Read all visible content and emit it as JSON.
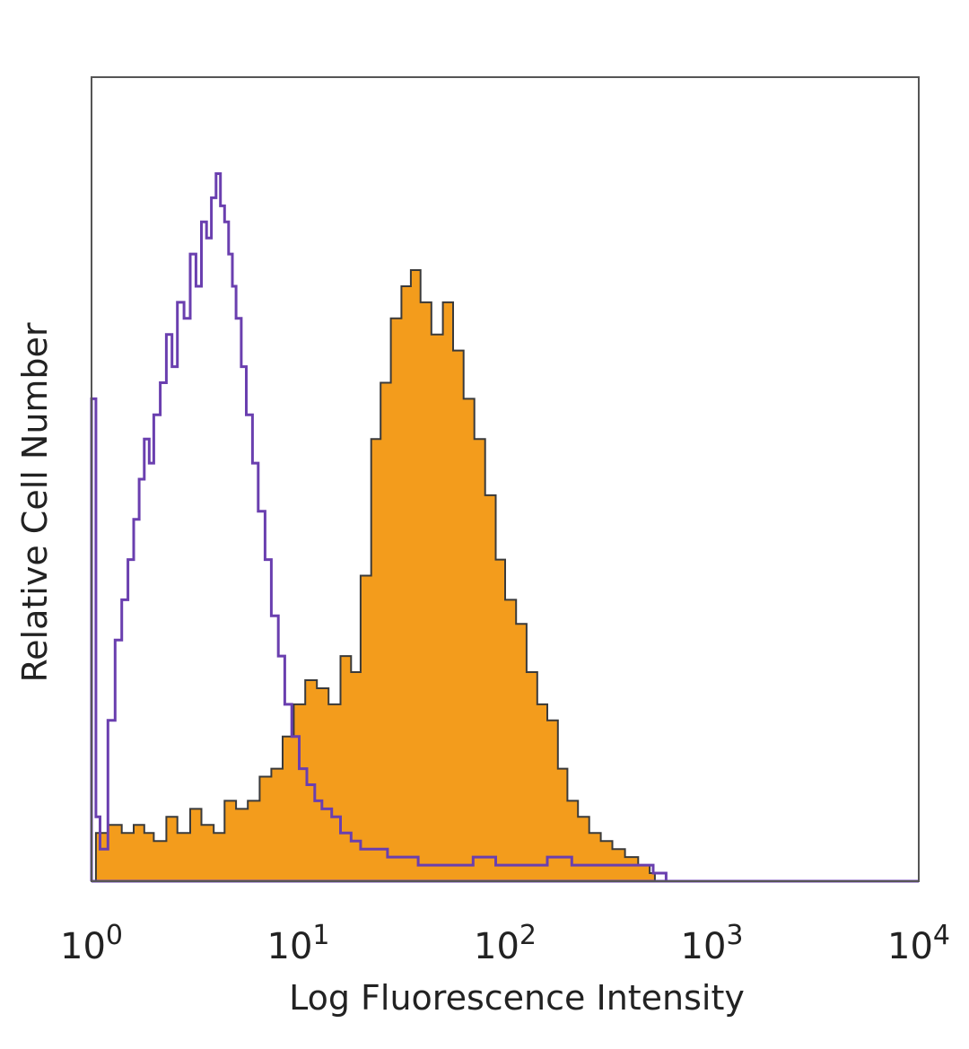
{
  "chart_data": {
    "type": "area",
    "xlabel": "Log Fluorescence Intensity",
    "ylabel": "Relative Cell Number",
    "x_scale": "log",
    "xlim": [
      1,
      10000
    ],
    "ylim": [
      0,
      100
    ],
    "x_ticks": [
      {
        "value": 1,
        "base": "10",
        "exp": "0"
      },
      {
        "value": 10,
        "base": "10",
        "exp": "1"
      },
      {
        "value": 100,
        "base": "10",
        "exp": "2"
      },
      {
        "value": 1000,
        "base": "10",
        "exp": "3"
      },
      {
        "value": 10000,
        "base": "10",
        "exp": "4"
      }
    ],
    "grid": false,
    "series": [
      {
        "style": "filled",
        "color": "#F39C1C",
        "edge_color": "#3a3a3a",
        "x": [
          1.05,
          1.2,
          1.4,
          1.6,
          1.8,
          2.0,
          2.3,
          2.6,
          3.0,
          3.4,
          3.9,
          4.4,
          5.0,
          5.7,
          6.5,
          7.4,
          8.4,
          9.5,
          10.8,
          12.3,
          14,
          16,
          18,
          20,
          22.5,
          25,
          28,
          31.5,
          35,
          39,
          44,
          50,
          56,
          63,
          71,
          80,
          90,
          100,
          113,
          127,
          143,
          160,
          180,
          200,
          225,
          255,
          290,
          330,
          380,
          440,
          500,
          530
        ],
        "y": [
          6,
          7,
          6,
          7,
          6,
          5,
          8,
          6,
          9,
          7,
          6,
          10,
          9,
          10,
          13,
          14,
          18,
          22,
          25,
          24,
          22,
          28,
          26,
          38,
          55,
          62,
          70,
          74,
          76,
          72,
          68,
          72,
          66,
          60,
          55,
          48,
          40,
          35,
          32,
          26,
          22,
          20,
          14,
          10,
          8,
          6,
          5,
          4,
          3,
          2,
          1,
          0
        ]
      },
      {
        "style": "line",
        "color": "#6A3FAF",
        "x": [
          1.0,
          1.05,
          1.1,
          1.2,
          1.3,
          1.4,
          1.5,
          1.6,
          1.7,
          1.8,
          1.9,
          2.0,
          2.15,
          2.3,
          2.45,
          2.6,
          2.8,
          3.0,
          3.2,
          3.4,
          3.6,
          3.8,
          4.0,
          4.2,
          4.4,
          4.6,
          4.8,
          5.0,
          5.3,
          5.6,
          6.0,
          6.4,
          6.9,
          7.4,
          8.0,
          8.6,
          9.3,
          10.1,
          11,
          12,
          13,
          14.5,
          16,
          18,
          20,
          23,
          27,
          32,
          38,
          46,
          56,
          70,
          90,
          120,
          160,
          210,
          280,
          380,
          520,
          600,
          620
        ],
        "y": [
          60,
          8,
          4,
          20,
          30,
          35,
          40,
          45,
          50,
          55,
          52,
          58,
          62,
          68,
          64,
          72,
          70,
          78,
          74,
          82,
          80,
          85,
          88,
          84,
          82,
          78,
          74,
          70,
          64,
          58,
          52,
          46,
          40,
          33,
          28,
          22,
          18,
          14,
          12,
          10,
          9,
          8,
          6,
          5,
          4,
          4,
          3,
          3,
          2,
          2,
          2,
          3,
          2,
          2,
          3,
          2,
          2,
          2,
          1,
          0,
          0
        ]
      }
    ]
  }
}
